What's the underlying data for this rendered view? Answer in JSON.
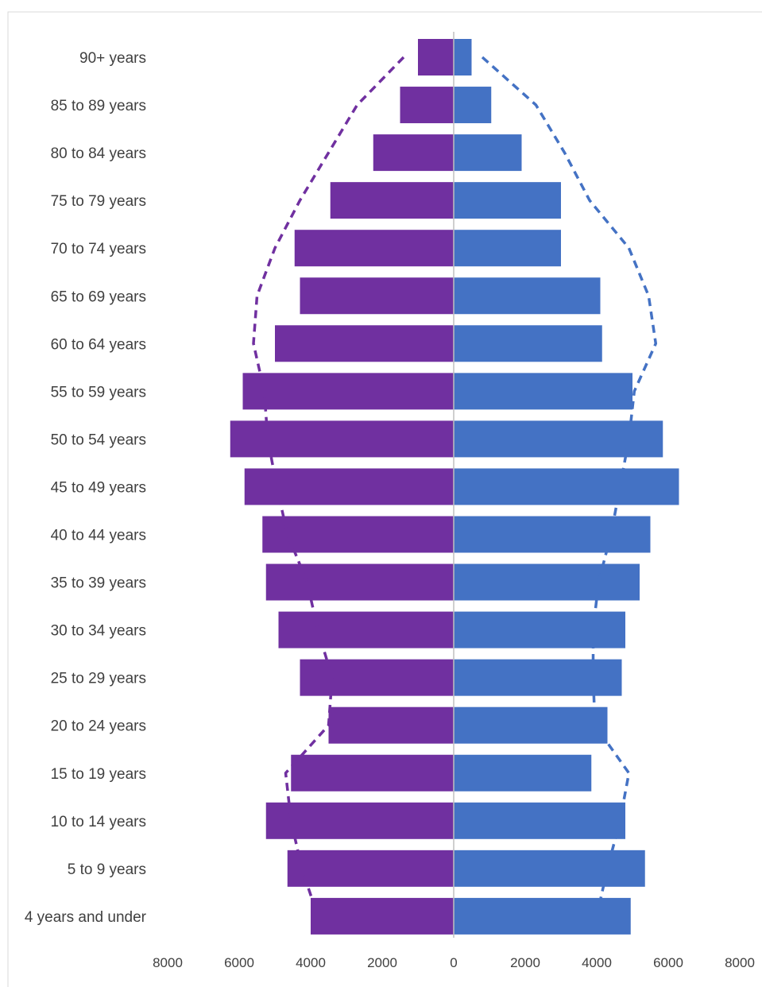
{
  "colors": {
    "left": "#7030a0",
    "right": "#4472c4",
    "center_axis": "#bfbfbf",
    "frame": "#d9d9d9"
  },
  "chart_data": {
    "type": "bar",
    "orientation": "horizontal",
    "layout": "population-pyramid",
    "title": "",
    "xlabel": "",
    "ylabel": "",
    "xlim": [
      -8000,
      8000
    ],
    "x_ticks": [
      -8000,
      -6000,
      -4000,
      -2000,
      0,
      2000,
      4000,
      6000,
      8000
    ],
    "x_tick_labels": [
      "8000",
      "6000",
      "4000",
      "2000",
      "0",
      "2000",
      "4000",
      "6000",
      "8000"
    ],
    "grid": false,
    "legend": "none",
    "categories": [
      "90+ years",
      "85 to 89 years",
      "80 to 84 years",
      "75 to 79 years",
      "70 to 74 years",
      "65 to 69 years",
      "60 to 64 years",
      "55 to 59 years",
      "50 to 54 years",
      "45 to 49 years",
      "40 to 44 years",
      "35 to 39 years",
      "30 to 34 years",
      "25 to 29 years",
      "20 to 24 years",
      "15 to 19 years",
      "10 to 14 years",
      "5 to 9 years",
      "4 years and under"
    ],
    "series": [
      {
        "side": "left",
        "color": "#7030a0",
        "values": [
          1000,
          1500,
          2250,
          3450,
          4450,
          4300,
          5000,
          5900,
          6250,
          5850,
          5350,
          5250,
          4900,
          4300,
          3500,
          4550,
          5250,
          4650,
          4000
        ]
      },
      {
        "side": "right",
        "color": "#4472c4",
        "values": [
          500,
          1050,
          1900,
          3000,
          3000,
          4100,
          4150,
          5000,
          5850,
          6300,
          5500,
          5200,
          4800,
          4700,
          4300,
          3850,
          4800,
          5350,
          4950
        ]
      }
    ],
    "overlay_lines": [
      {
        "side": "left",
        "style": "dashed",
        "color": "#7030a0",
        "values": [
          1400,
          2700,
          3500,
          4300,
          5000,
          5500,
          5600,
          5300,
          5200,
          4950,
          4650,
          4100,
          3800,
          3400,
          3500,
          4700,
          4550,
          4250,
          3800
        ]
      },
      {
        "side": "right",
        "style": "dashed",
        "color": "#4472c4",
        "values": [
          800,
          2300,
          3100,
          3800,
          4900,
          5450,
          5650,
          5050,
          4900,
          4650,
          4400,
          4050,
          3900,
          3900,
          3950,
          4900,
          4650,
          4300,
          4000
        ]
      }
    ]
  }
}
